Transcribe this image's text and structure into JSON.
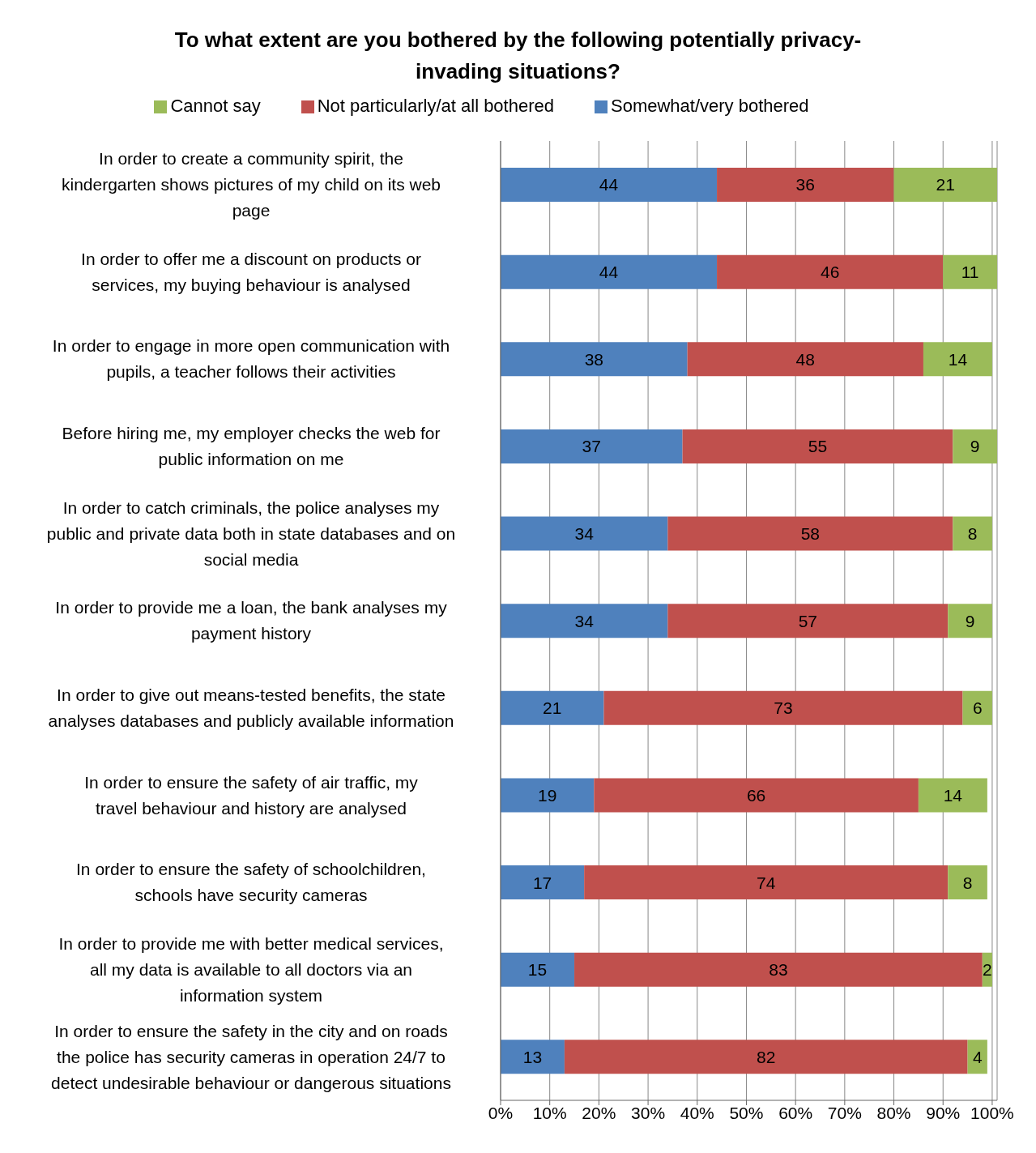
{
  "chart_data": {
    "type": "bar",
    "orientation": "horizontal",
    "stacked": true,
    "title": "To what extent are you bothered by the following potentially privacy-invading situations?",
    "categories": [
      "In order to create a community spirit, the kindergarten shows pictures of my child on its web page",
      "In order to offer me a discount on products or services, my buying behaviour is analysed",
      "In order to engage in more open communication with pupils, a teacher follows their activities",
      "Before hiring me, my employer checks the web for public information on me",
      "In order to catch criminals, the police analyses my public and private data both in state databases and on social media",
      "In order to provide me a loan, the bank analyses my payment history",
      "In order to give out means-tested benefits, the state analyses databases and publicly available information",
      "In order to ensure the safety of air traffic, my travel behaviour and history are analysed",
      "In order to ensure the safety of schoolchildren, schools have security cameras",
      "In order to provide me with better medical services, all my data is available to all doctors via an information system",
      "In order to ensure the safety in the city and on roads the police has security cameras in operation 24/7 to detect undesirable behaviour or dangerous situations"
    ],
    "series": [
      {
        "name": "Somewhat/very bothered",
        "color": "#4f81bd",
        "values": [
          44,
          44,
          38,
          37,
          34,
          34,
          21,
          19,
          17,
          15,
          13
        ]
      },
      {
        "name": "Not particularly/at all bothered",
        "color": "#c0504d",
        "values": [
          36,
          46,
          48,
          55,
          58,
          57,
          73,
          66,
          74,
          83,
          82
        ]
      },
      {
        "name": "Cannot say",
        "color": "#9bbb59",
        "values": [
          21,
          11,
          14,
          9,
          8,
          9,
          6,
          14,
          8,
          2,
          4
        ]
      }
    ],
    "xlim": [
      0,
      101
    ],
    "xticks": [
      {
        "value": 0,
        "label": "0%"
      },
      {
        "value": 10,
        "label": "10%"
      },
      {
        "value": 20,
        "label": "20%"
      },
      {
        "value": 30,
        "label": "30%"
      },
      {
        "value": 40,
        "label": "40%"
      },
      {
        "value": 50,
        "label": "50%"
      },
      {
        "value": 60,
        "label": "60%"
      },
      {
        "value": 70,
        "label": "70%"
      },
      {
        "value": 80,
        "label": "80%"
      },
      {
        "value": 90,
        "label": "90%"
      },
      {
        "value": 100,
        "label": "100%"
      }
    ],
    "grid": "x",
    "legend": "top",
    "data_labels": true
  }
}
